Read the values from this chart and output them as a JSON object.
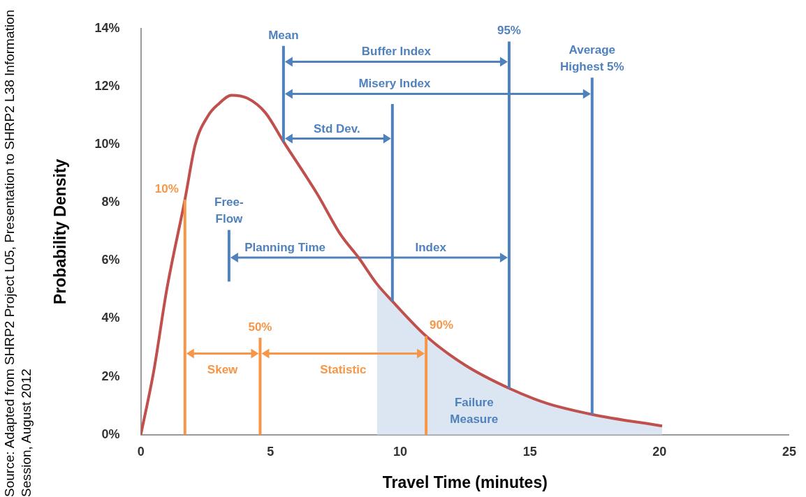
{
  "chart_data": {
    "type": "line",
    "xlabel": "Travel Time (minutes)",
    "ylabel": "Probability Density",
    "xlim": [
      0,
      25
    ],
    "xticks": [
      0,
      5,
      10,
      15,
      20,
      25
    ],
    "ylim": [
      0,
      14
    ],
    "yticks": [
      {
        "value": 0,
        "label": "0%"
      },
      {
        "value": 2,
        "label": "2%"
      },
      {
        "value": 4,
        "label": "4%"
      },
      {
        "value": 6,
        "label": "6%"
      },
      {
        "value": 8,
        "label": "8%"
      },
      {
        "value": 10,
        "label": "10%"
      },
      {
        "value": 12,
        "label": "12%"
      },
      {
        "value": 14,
        "label": "14%"
      }
    ],
    "marker": "none",
    "series": [
      {
        "color": "#c0504d",
        "x": [
          0,
          0.5,
          1,
          1.7,
          2.1,
          2.6,
          3,
          3.5,
          4.1,
          4.8,
          5.5,
          6.8,
          7.7,
          8.4,
          9.1,
          9.7,
          11,
          12.5,
          14.2,
          15.6,
          17.4,
          20.1
        ],
        "values": [
          0,
          2.2,
          5,
          8.1,
          10,
          11,
          11.4,
          11.7,
          11.6,
          11.1,
          10.1,
          8.3,
          6.9,
          6.1,
          5.2,
          4.6,
          3.4,
          2.4,
          1.6,
          1.1,
          0.7,
          0.3
        ]
      },
      {
        "type": "area",
        "color": "#dce6f2",
        "x": [
          9.1,
          9.7,
          11,
          12.5,
          14.2,
          15.6,
          17.4,
          20.1
        ],
        "values": [
          5.2,
          4.6,
          3.4,
          2.4,
          1.6,
          1.1,
          0.7,
          0.3
        ]
      }
    ],
    "ref_lines": [
      {
        "axis": "x",
        "value": 1.7,
        "label": null,
        "color": "#f79646"
      },
      {
        "axis": "x",
        "value": 4.6,
        "label": null,
        "color": "#f79646"
      },
      {
        "axis": "x",
        "value": 11.0,
        "label": null,
        "color": "#f79646"
      },
      {
        "axis": "x",
        "value": 5.5,
        "label": "Mean",
        "color": "#4f81bd"
      },
      {
        "axis": "x",
        "value": 9.7,
        "label": null,
        "color": "#4f81bd"
      },
      {
        "axis": "x",
        "value": 14.2,
        "label": null,
        "color": "#4f81bd"
      },
      {
        "axis": "x",
        "value": 17.4,
        "label": "Average Highest 5%",
        "color": "#4f81bd"
      },
      {
        "axis": "x",
        "value": 3.4,
        "label": "Free-Flow",
        "color": "#4f81bd"
      }
    ],
    "annotations": [
      "10%",
      "50%",
      "90%",
      "95%",
      "Buffer Index",
      "Misery Index",
      "Std Dev.",
      "Planning Time",
      "Index",
      "Skew",
      "Statistic",
      "Failure Measure",
      "Source:  Adapted from SHRP2 Project L05, Presentation to SHRP2 L38 Information Session, August 2012"
    ]
  }
}
